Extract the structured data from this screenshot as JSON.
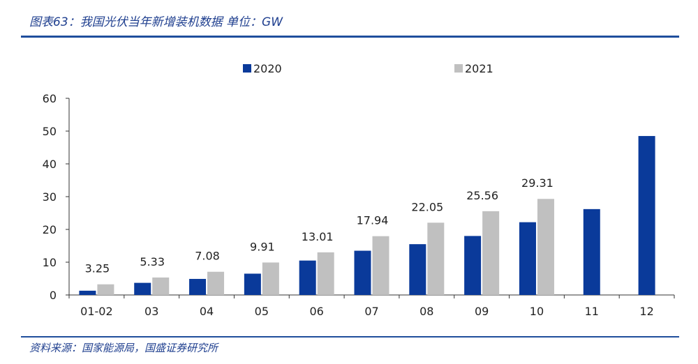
{
  "header": {
    "title": "图表63：我国光伏当年新增装机数据 单位：GW"
  },
  "footer": {
    "source": "资料来源：国家能源局，国盛证券研究所"
  },
  "colors": {
    "series_2020": "#0a3a9a",
    "series_2021": "#c0c0c0",
    "axis": "#333333",
    "rule": "#1f4e9c"
  },
  "chart_data": {
    "type": "bar",
    "title": "",
    "xlabel": "",
    "ylabel": "",
    "categories": [
      "01-02",
      "03",
      "04",
      "05",
      "06",
      "07",
      "08",
      "09",
      "10",
      "11",
      "12"
    ],
    "ylim": [
      0,
      60
    ],
    "yticks": [
      0,
      10,
      20,
      30,
      40,
      50,
      60
    ],
    "legend": {
      "placement": "top",
      "entries": [
        "2020",
        "2021"
      ]
    },
    "grid": false,
    "series": [
      {
        "name": "2020",
        "values": [
          1.3,
          3.7,
          4.9,
          6.5,
          10.5,
          13.5,
          15.5,
          18.0,
          22.2,
          26.2,
          48.5
        ]
      },
      {
        "name": "2021",
        "values": [
          3.25,
          5.33,
          7.08,
          9.91,
          13.01,
          17.94,
          22.05,
          25.56,
          29.31,
          null,
          null
        ]
      }
    ],
    "data_labels": [
      "3.25",
      "5.33",
      "7.08",
      "9.91",
      "13.01",
      "17.94",
      "22.05",
      "25.56",
      "29.31"
    ]
  }
}
